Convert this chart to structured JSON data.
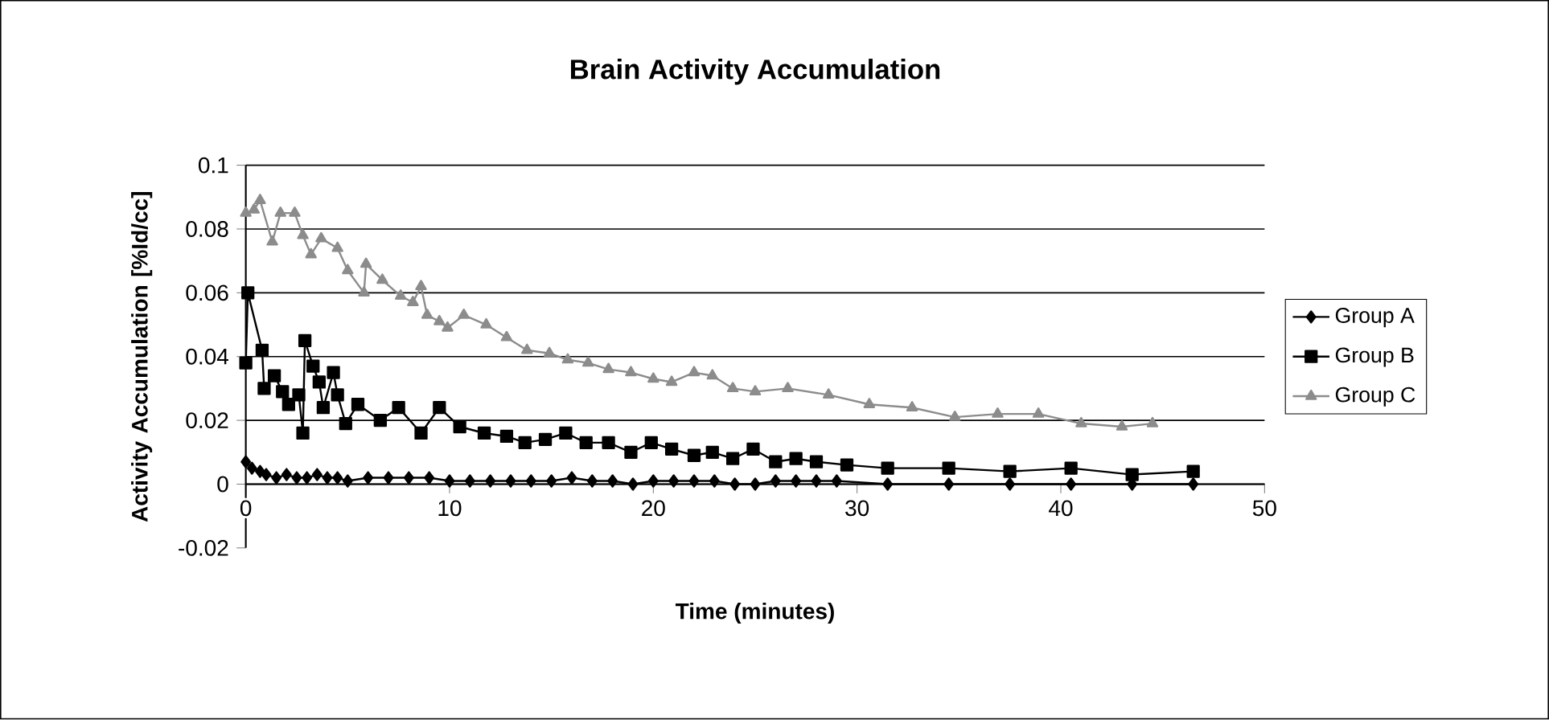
{
  "chart_data": {
    "type": "line",
    "title": "Brain Activity Accumulation",
    "xlabel": "Time (minutes)",
    "ylabel": "Activity Accumulation [%Id/cc]",
    "xlim": [
      0,
      50
    ],
    "xticks": [
      0,
      10,
      20,
      30,
      40,
      50
    ],
    "ylim": [
      -0.02,
      0.1
    ],
    "yticks": [
      -0.02,
      0,
      0.02,
      0.04,
      0.06,
      0.08,
      0.1
    ],
    "grid": "y",
    "legend": "right",
    "series": [
      {
        "name": "Group A",
        "color": "#000000",
        "marker": "diamond",
        "x": [
          0,
          0.3,
          0.7,
          1,
          1.5,
          2,
          2.5,
          3,
          3.5,
          4,
          4.5,
          5,
          6,
          7,
          8,
          9,
          10,
          11,
          12,
          13,
          14,
          15,
          16,
          17,
          18,
          19,
          20,
          21,
          22,
          23,
          24,
          25,
          26,
          27,
          28,
          29,
          31.5,
          34.5,
          37.5,
          40.5,
          43.5,
          46.5
        ],
        "values": [
          0.007,
          0.005,
          0.004,
          0.003,
          0.002,
          0.003,
          0.002,
          0.002,
          0.003,
          0.002,
          0.002,
          0.001,
          0.002,
          0.002,
          0.002,
          0.002,
          0.001,
          0.001,
          0.001,
          0.001,
          0.001,
          0.001,
          0.002,
          0.001,
          0.001,
          0,
          0.001,
          0.001,
          0.001,
          0.001,
          0,
          0,
          0.001,
          0.001,
          0.001,
          0.001,
          0,
          0,
          0,
          0,
          0,
          0
        ]
      },
      {
        "name": "Group B",
        "color": "#000000",
        "marker": "square",
        "x": [
          0,
          0.1,
          0.8,
          0.9,
          1.4,
          1.8,
          2.1,
          2.6,
          2.8,
          2.9,
          3.3,
          3.6,
          3.8,
          4.3,
          4.5,
          4.9,
          5.5,
          6.6,
          7.5,
          8.6,
          9.5,
          10.5,
          11.7,
          12.8,
          13.7,
          14.7,
          15.7,
          16.7,
          17.8,
          18.9,
          19.9,
          20.9,
          22,
          22.9,
          23.9,
          24.9,
          26,
          27,
          28,
          29.5,
          31.5,
          34.5,
          37.5,
          40.5,
          43.5,
          46.5
        ],
        "values": [
          0.038,
          0.06,
          0.042,
          0.03,
          0.034,
          0.029,
          0.025,
          0.028,
          0.016,
          0.045,
          0.037,
          0.032,
          0.024,
          0.035,
          0.028,
          0.019,
          0.025,
          0.02,
          0.024,
          0.016,
          0.024,
          0.018,
          0.016,
          0.015,
          0.013,
          0.014,
          0.016,
          0.013,
          0.013,
          0.01,
          0.013,
          0.011,
          0.009,
          0.01,
          0.008,
          0.011,
          0.007,
          0.008,
          0.007,
          0.006,
          0.005,
          0.005,
          0.004,
          0.005,
          0.003,
          0.004
        ]
      },
      {
        "name": "Group C",
        "color": "#8c8c8c",
        "marker": "triangle",
        "x": [
          0,
          0.4,
          0.7,
          1.3,
          1.7,
          2.4,
          2.8,
          3.2,
          3.7,
          4.5,
          5,
          5.8,
          5.9,
          6.7,
          7.6,
          8.2,
          8.6,
          8.9,
          9.5,
          9.9,
          10.7,
          11.8,
          12.8,
          13.8,
          14.9,
          15.8,
          16.8,
          17.8,
          18.9,
          20,
          20.9,
          22,
          22.9,
          23.9,
          25,
          26.6,
          28.6,
          30.6,
          32.7,
          34.8,
          36.9,
          38.9,
          41,
          43,
          44.5
        ],
        "values": [
          0.085,
          0.086,
          0.089,
          0.076,
          0.085,
          0.085,
          0.078,
          0.072,
          0.077,
          0.074,
          0.067,
          0.06,
          0.069,
          0.064,
          0.059,
          0.057,
          0.062,
          0.053,
          0.051,
          0.049,
          0.053,
          0.05,
          0.046,
          0.042,
          0.041,
          0.039,
          0.038,
          0.036,
          0.035,
          0.033,
          0.032,
          0.035,
          0.034,
          0.03,
          0.029,
          0.03,
          0.028,
          0.025,
          0.024,
          0.021,
          0.022,
          0.022,
          0.019,
          0.018,
          0.019
        ]
      }
    ]
  }
}
